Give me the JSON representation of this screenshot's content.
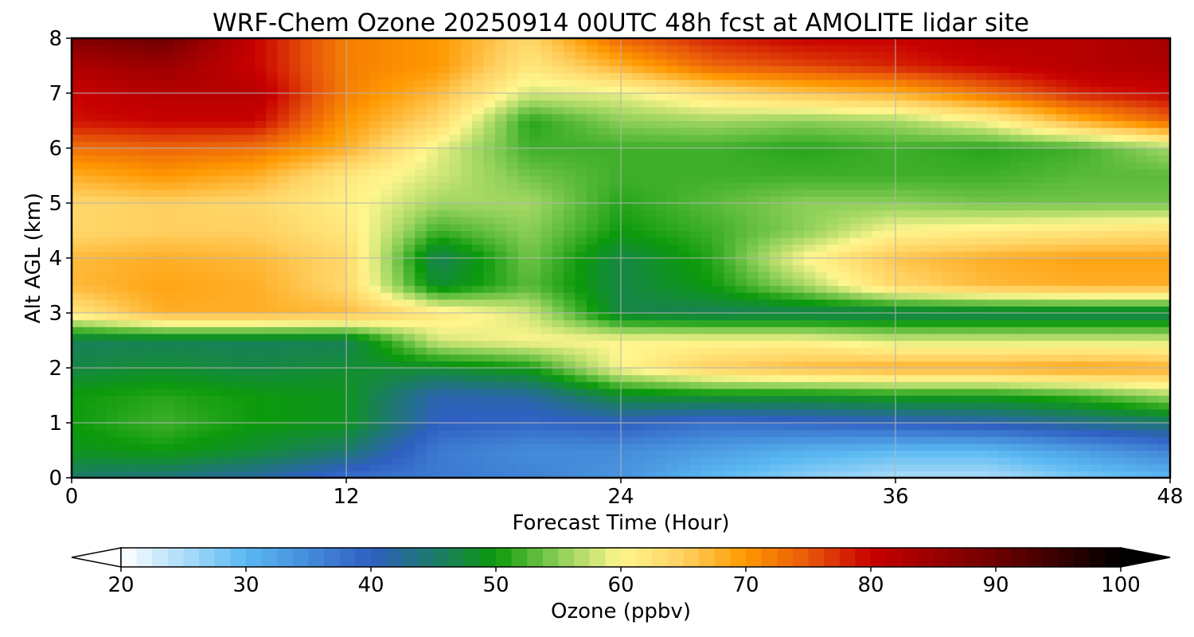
{
  "chart_data": {
    "type": "heatmap",
    "title": "WRF-Chem Ozone  20250914 00UTC 48h fcst at AMOLITE lidar site",
    "xlabel": "Forecast Time (Hour)",
    "ylabel": "Alt AGL (km)",
    "xlim": [
      0,
      48
    ],
    "ylim": [
      0,
      8
    ],
    "x_ticks": [
      "0",
      "12",
      "24",
      "36",
      "48"
    ],
    "y_ticks": [
      "0",
      "1",
      "2",
      "3",
      "4",
      "5",
      "6",
      "7",
      "8"
    ],
    "grid": true,
    "colorbar": {
      "label": "Ozone  (ppbv)",
      "range": [
        20,
        100
      ],
      "ticks": [
        "20",
        "30",
        "40",
        "50",
        "60",
        "70",
        "80",
        "90",
        "100"
      ],
      "extend": "both",
      "placement": "bottom"
    },
    "color_scale": [
      {
        "value": 20,
        "color": "#ffffff"
      },
      {
        "value": 30,
        "color": "#5ab9f2"
      },
      {
        "value": 40,
        "color": "#2f5fc2"
      },
      {
        "value": 45,
        "color": "#1d7a6c"
      },
      {
        "value": 50,
        "color": "#0c9a0c"
      },
      {
        "value": 55,
        "color": "#8ccf58"
      },
      {
        "value": 60,
        "color": "#fff68e"
      },
      {
        "value": 65,
        "color": "#ffd060"
      },
      {
        "value": 70,
        "color": "#ff9800"
      },
      {
        "value": 75,
        "color": "#e8580a"
      },
      {
        "value": 80,
        "color": "#c80000"
      },
      {
        "value": 90,
        "color": "#6e0000"
      },
      {
        "value": 100,
        "color": "#000000"
      }
    ],
    "x": [
      0,
      4,
      8,
      12,
      16,
      20,
      24,
      28,
      32,
      36,
      40,
      44,
      48
    ],
    "y": [
      0,
      0.5,
      1,
      1.5,
      2,
      2.5,
      3,
      3.5,
      4,
      4.5,
      5,
      5.5,
      6,
      6.5,
      7,
      7.5,
      8
    ],
    "z": [
      [
        45,
        44,
        42,
        38,
        37,
        36,
        34,
        30,
        27,
        25,
        25,
        28,
        30
      ],
      [
        49,
        50,
        48,
        45,
        37,
        35,
        35,
        33,
        31,
        30,
        30,
        33,
        36
      ],
      [
        50,
        52,
        50,
        49,
        40,
        39,
        40,
        38,
        39,
        40,
        41,
        43,
        45
      ],
      [
        50,
        51,
        50,
        49,
        41,
        42,
        48,
        49,
        49,
        50,
        50,
        52,
        56
      ],
      [
        47,
        48,
        47,
        48,
        48,
        50,
        60,
        65,
        67,
        68,
        68,
        69,
        68
      ],
      [
        46,
        46,
        46,
        46,
        58,
        60,
        60,
        60,
        60,
        58,
        58,
        58,
        58
      ],
      [
        62,
        68,
        68,
        67,
        62,
        58,
        47,
        46,
        46,
        46,
        46,
        46,
        46
      ],
      [
        67,
        69,
        68,
        64,
        48,
        53,
        47,
        50,
        56,
        64,
        67,
        68,
        68
      ],
      [
        67,
        68,
        67,
        64,
        46,
        54,
        47,
        51,
        60,
        66,
        68,
        69,
        69
      ],
      [
        64,
        65,
        65,
        62,
        52,
        55,
        50,
        52,
        55,
        60,
        61,
        62,
        63
      ],
      [
        64,
        65,
        64,
        61,
        56,
        56,
        51,
        53,
        55,
        55,
        54,
        54,
        54
      ],
      [
        68,
        70,
        68,
        62,
        58,
        54,
        52,
        52,
        52,
        52,
        52,
        53,
        53
      ],
      [
        73,
        74,
        73,
        68,
        59,
        52,
        52,
        52,
        51,
        52,
        51,
        52,
        56
      ],
      [
        79,
        80,
        80,
        70,
        64,
        51,
        55,
        56,
        55,
        56,
        60,
        68,
        74
      ],
      [
        80,
        82,
        82,
        72,
        67,
        58,
        59,
        63,
        66,
        68,
        73,
        78,
        80
      ],
      [
        83,
        85,
        80,
        72,
        70,
        62,
        68,
        74,
        76,
        78,
        80,
        82,
        83
      ],
      [
        88,
        90,
        80,
        72,
        70,
        64,
        74,
        78,
        80,
        80,
        82,
        82,
        84
      ]
    ]
  }
}
